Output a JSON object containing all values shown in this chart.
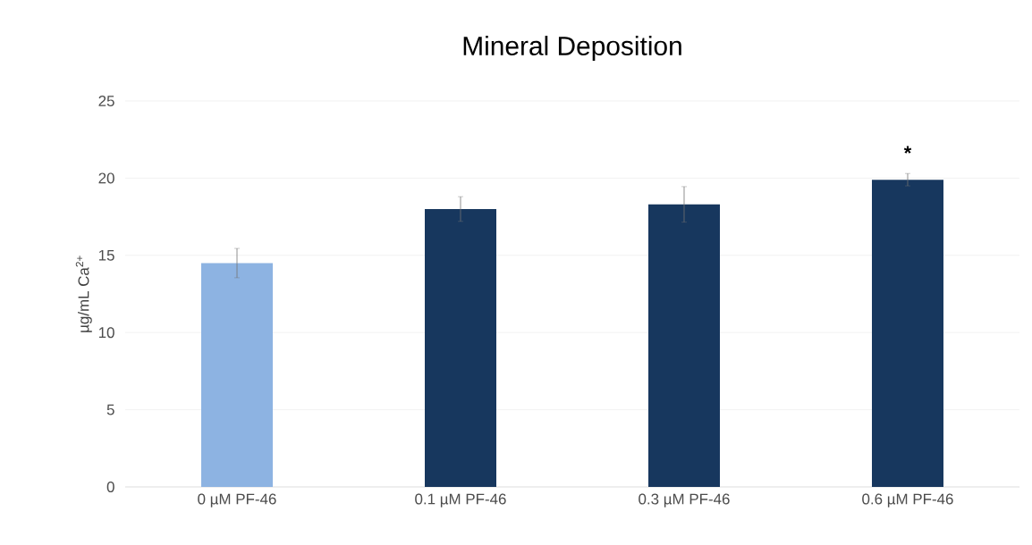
{
  "chart_data": {
    "type": "bar",
    "title": "Mineral Deposition",
    "ylabel": "µg/mL Ca$^{2+}$",
    "categories": [
      "0 µM PF-46",
      "0.1 µM PF-46",
      "0.3 µM PF-46",
      "0.6 µM PF-46"
    ],
    "values": [
      14.5,
      18.0,
      18.3,
      19.9
    ],
    "errors": [
      0.95,
      0.8,
      1.15,
      0.4
    ],
    "colors": [
      "#8db3e2",
      "#17375e",
      "#17375e",
      "#17375e"
    ],
    "ylim": [
      0,
      25
    ],
    "yticks": [
      0,
      5,
      10,
      15,
      20,
      25
    ],
    "grid": "y",
    "annotations": [
      "*"
    ]
  }
}
